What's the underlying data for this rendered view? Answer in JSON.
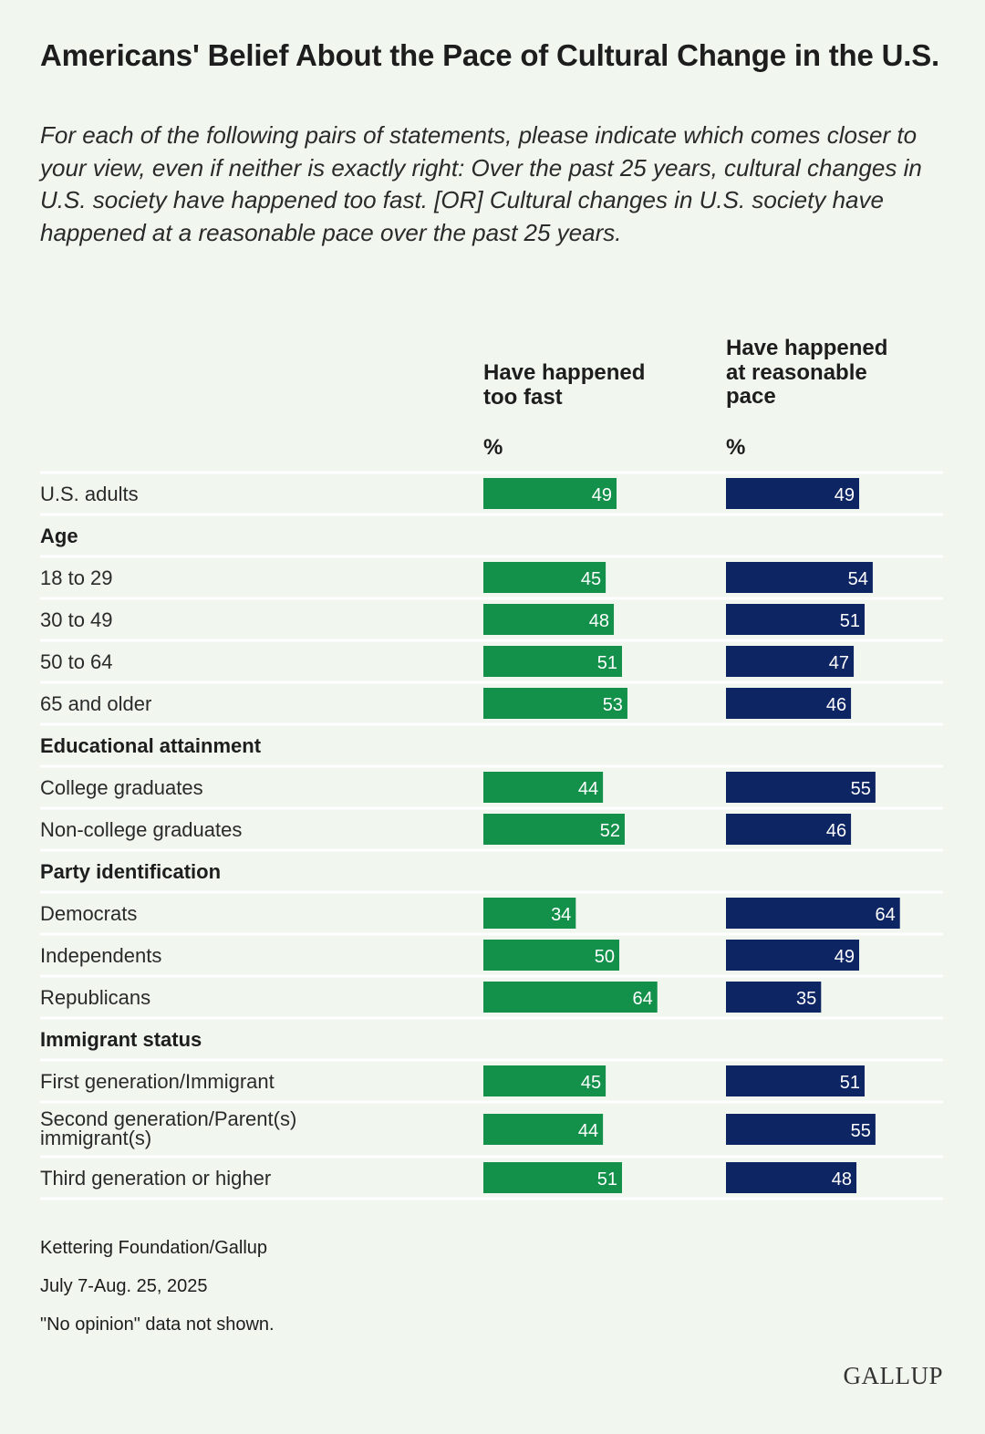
{
  "chart_data": {
    "type": "bar",
    "title": "Americans' Belief About the Pace of Cultural Change in the U.S.",
    "subtitle": "For each of the following pairs of statements, please indicate which comes closer to your view, even if neither is exactly right: Over the past 25 years, cultural changes in U.S. society have happened too fast. [OR] Cultural changes in U.S. society have happened at a reasonable pace over the past 25 years.",
    "unit": "%",
    "series": [
      {
        "name": "Have happened too fast",
        "color": "#13904a"
      },
      {
        "name": "Have happened at reasonable pace",
        "color": "#0e2563"
      }
    ],
    "rows": [
      {
        "type": "data",
        "label": "U.S. adults",
        "values": [
          49,
          49
        ]
      },
      {
        "type": "group",
        "label": "Age"
      },
      {
        "type": "data",
        "label": "18 to 29",
        "values": [
          45,
          54
        ]
      },
      {
        "type": "data",
        "label": "30 to 49",
        "values": [
          48,
          51
        ]
      },
      {
        "type": "data",
        "label": "50 to 64",
        "values": [
          51,
          47
        ]
      },
      {
        "type": "data",
        "label": "65 and older",
        "values": [
          53,
          46
        ]
      },
      {
        "type": "group",
        "label": "Educational attainment"
      },
      {
        "type": "data",
        "label": "College graduates",
        "values": [
          44,
          55
        ]
      },
      {
        "type": "data",
        "label": "Non-college graduates",
        "values": [
          52,
          46
        ]
      },
      {
        "type": "group",
        "label": "Party identification"
      },
      {
        "type": "data",
        "label": "Democrats",
        "values": [
          34,
          64
        ]
      },
      {
        "type": "data",
        "label": "Independents",
        "values": [
          50,
          49
        ]
      },
      {
        "type": "data",
        "label": "Republicans",
        "values": [
          64,
          35
        ]
      },
      {
        "type": "group",
        "label": "Immigrant status"
      },
      {
        "type": "data",
        "label": "First generation/Immigrant",
        "values": [
          45,
          51
        ]
      },
      {
        "type": "data",
        "label": [
          "Second generation/Parent(s)",
          "immigrant(s)"
        ],
        "values": [
          44,
          55
        ]
      },
      {
        "type": "data",
        "label": "Third generation or higher",
        "values": [
          51,
          48
        ]
      }
    ]
  },
  "column_headers": {
    "fast": [
      "Have happened",
      "too fast"
    ],
    "reasonable": [
      "Have happened",
      "at reasonable",
      "pace"
    ],
    "unit_label": "%"
  },
  "footer": {
    "source": "Kettering Foundation/Gallup",
    "date": "July 7-Aug. 25, 2025",
    "note": "\"No opinion\" data not shown."
  },
  "logo": "GALLUP",
  "colors": {
    "background": "#f1f6ef",
    "divider": "#ffffff",
    "bar_label": "#ffffff"
  }
}
